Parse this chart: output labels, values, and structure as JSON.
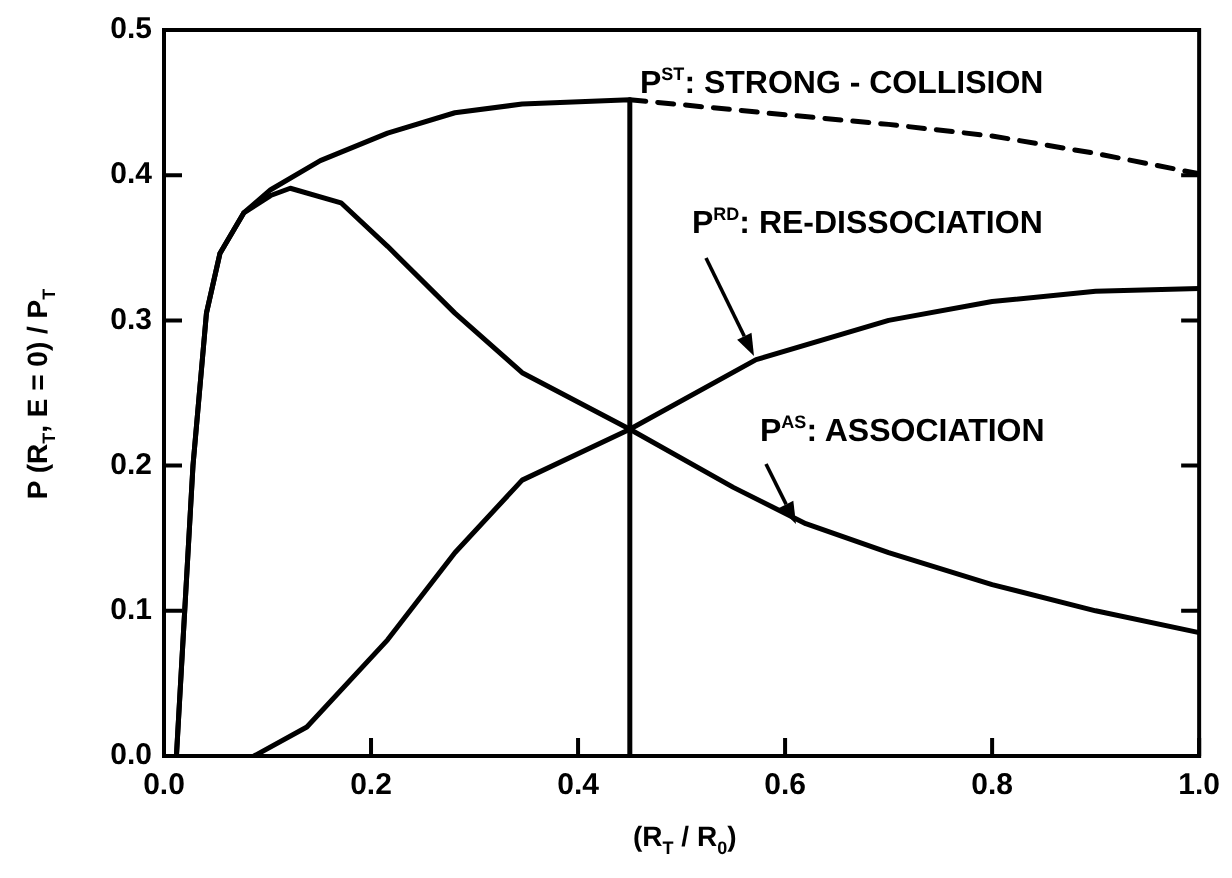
{
  "chart_data": {
    "type": "line",
    "xlabel": "(R$_{T}$ / R$_{0}$)",
    "ylabel": "P (R$_{T}$, E = 0) / P$_{T}$",
    "xlim": [
      0,
      1
    ],
    "xticks": [
      {
        "value": 0,
        "label": "0.0"
      },
      0.2,
      0.4,
      0.6,
      0.8,
      {
        "value": 1,
        "label": "1.0"
      }
    ],
    "ylim": [
      0,
      0.5
    ],
    "yticks": [
      {
        "value": 0,
        "label": "0.0"
      },
      0.1,
      0.2,
      0.3,
      0.4,
      0.5
    ],
    "grid": false,
    "legend": false,
    "marker": "none",
    "series": [
      {
        "color": "#000000",
        "line_style": "solid",
        "x": [
          0.012,
          0.028,
          0.041,
          0.054,
          0.077,
          0.103,
          0.151,
          0.216,
          0.281,
          0.346,
          0.45,
          0.45
        ],
        "values": [
          0,
          0.2,
          0.305,
          0.346,
          0.374,
          0.39,
          0.41,
          0.429,
          0.443,
          0.449,
          0.452,
          0
        ]
      },
      {
        "name": "P$^{ST}$: STRONG - COLLISION",
        "color": "#000000",
        "line_style": "dashed",
        "x": [
          0.45,
          0.58,
          0.7,
          0.8,
          0.9,
          1.0
        ],
        "values": [
          0.452,
          0.443,
          0.435,
          0.427,
          0.415,
          0.401
        ]
      },
      {
        "name": "P$^{RD}$: RE-DISSOCIATION",
        "color": "#000000",
        "line_style": "solid",
        "x": [
          0.087,
          0.138,
          0.216,
          0.281,
          0.346,
          0.45,
          0.572,
          0.7,
          0.8,
          0.9,
          1.0
        ],
        "values": [
          0,
          0.02,
          0.08,
          0.14,
          0.19,
          0.225,
          0.273,
          0.3,
          0.313,
          0.32,
          0.322
        ]
      },
      {
        "name": "P$^{AS}$: ASSOCIATION",
        "color": "#000000",
        "line_style": "solid",
        "x": [
          0.012,
          0.028,
          0.041,
          0.054,
          0.077,
          0.103,
          0.122,
          0.171,
          0.216,
          0.281,
          0.346,
          0.45,
          0.55,
          0.62,
          0.7,
          0.8,
          0.9,
          1.0
        ],
        "values": [
          0,
          0.2,
          0.305,
          0.346,
          0.374,
          0.386,
          0.391,
          0.381,
          0.351,
          0.305,
          0.264,
          0.225,
          0.185,
          0.16,
          0.14,
          0.118,
          0.1,
          0.085
        ]
      }
    ]
  }
}
